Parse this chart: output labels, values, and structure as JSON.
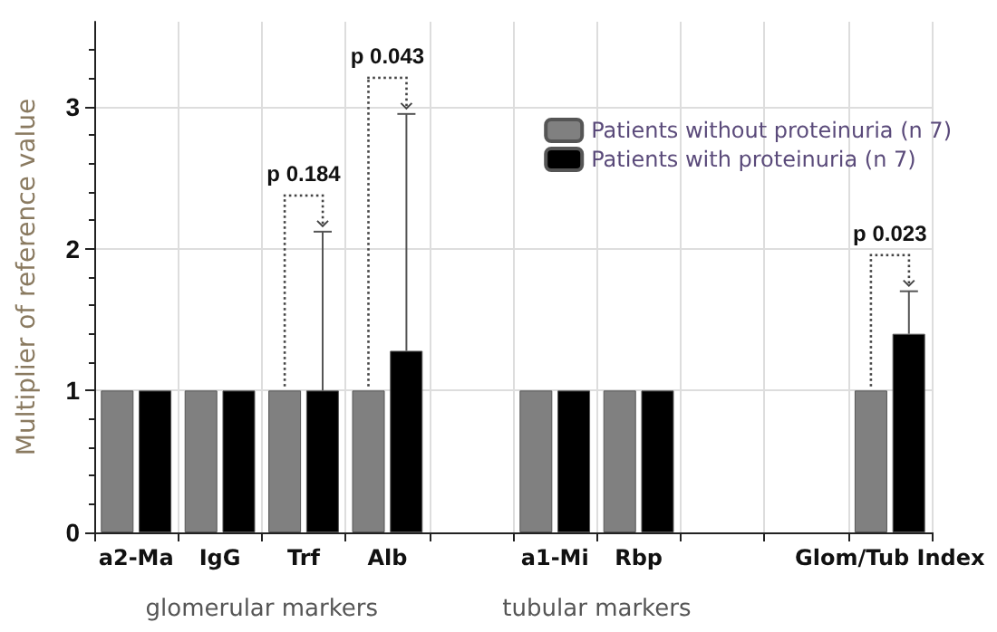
{
  "chart_data": {
    "type": "bar",
    "ylabel": "Multiplier of reference value",
    "categories": [
      "a2-Ma",
      "IgG",
      "Trf",
      "Alb",
      null,
      "a1-Mi",
      "Rbp",
      null,
      null,
      "Glom/Tub Index"
    ],
    "series": [
      {
        "name": "Patients without proteinuria (n 7)",
        "color": "#808080",
        "values": [
          1,
          1,
          1,
          1,
          null,
          1,
          1,
          null,
          null,
          1
        ]
      },
      {
        "name": "Patients with proteinuria (n 7)",
        "color": "#000000",
        "values": [
          1,
          1,
          1,
          1.28,
          null,
          1,
          1,
          null,
          null,
          1.4
        ],
        "errors": [
          null,
          null,
          [
            1,
            2.12
          ],
          [
            1.28,
            2.95
          ],
          null,
          null,
          null,
          null,
          null,
          [
            1.4,
            1.7
          ]
        ]
      }
    ],
    "ylim": [
      0,
      3.6
    ],
    "yticks": [
      0,
      1,
      2,
      3
    ],
    "grid": true,
    "legend": "top right",
    "annotations": [
      "p 0.184",
      "p 0.043",
      "p 0.023",
      "glomerular markers",
      "tubular markers"
    ]
  }
}
